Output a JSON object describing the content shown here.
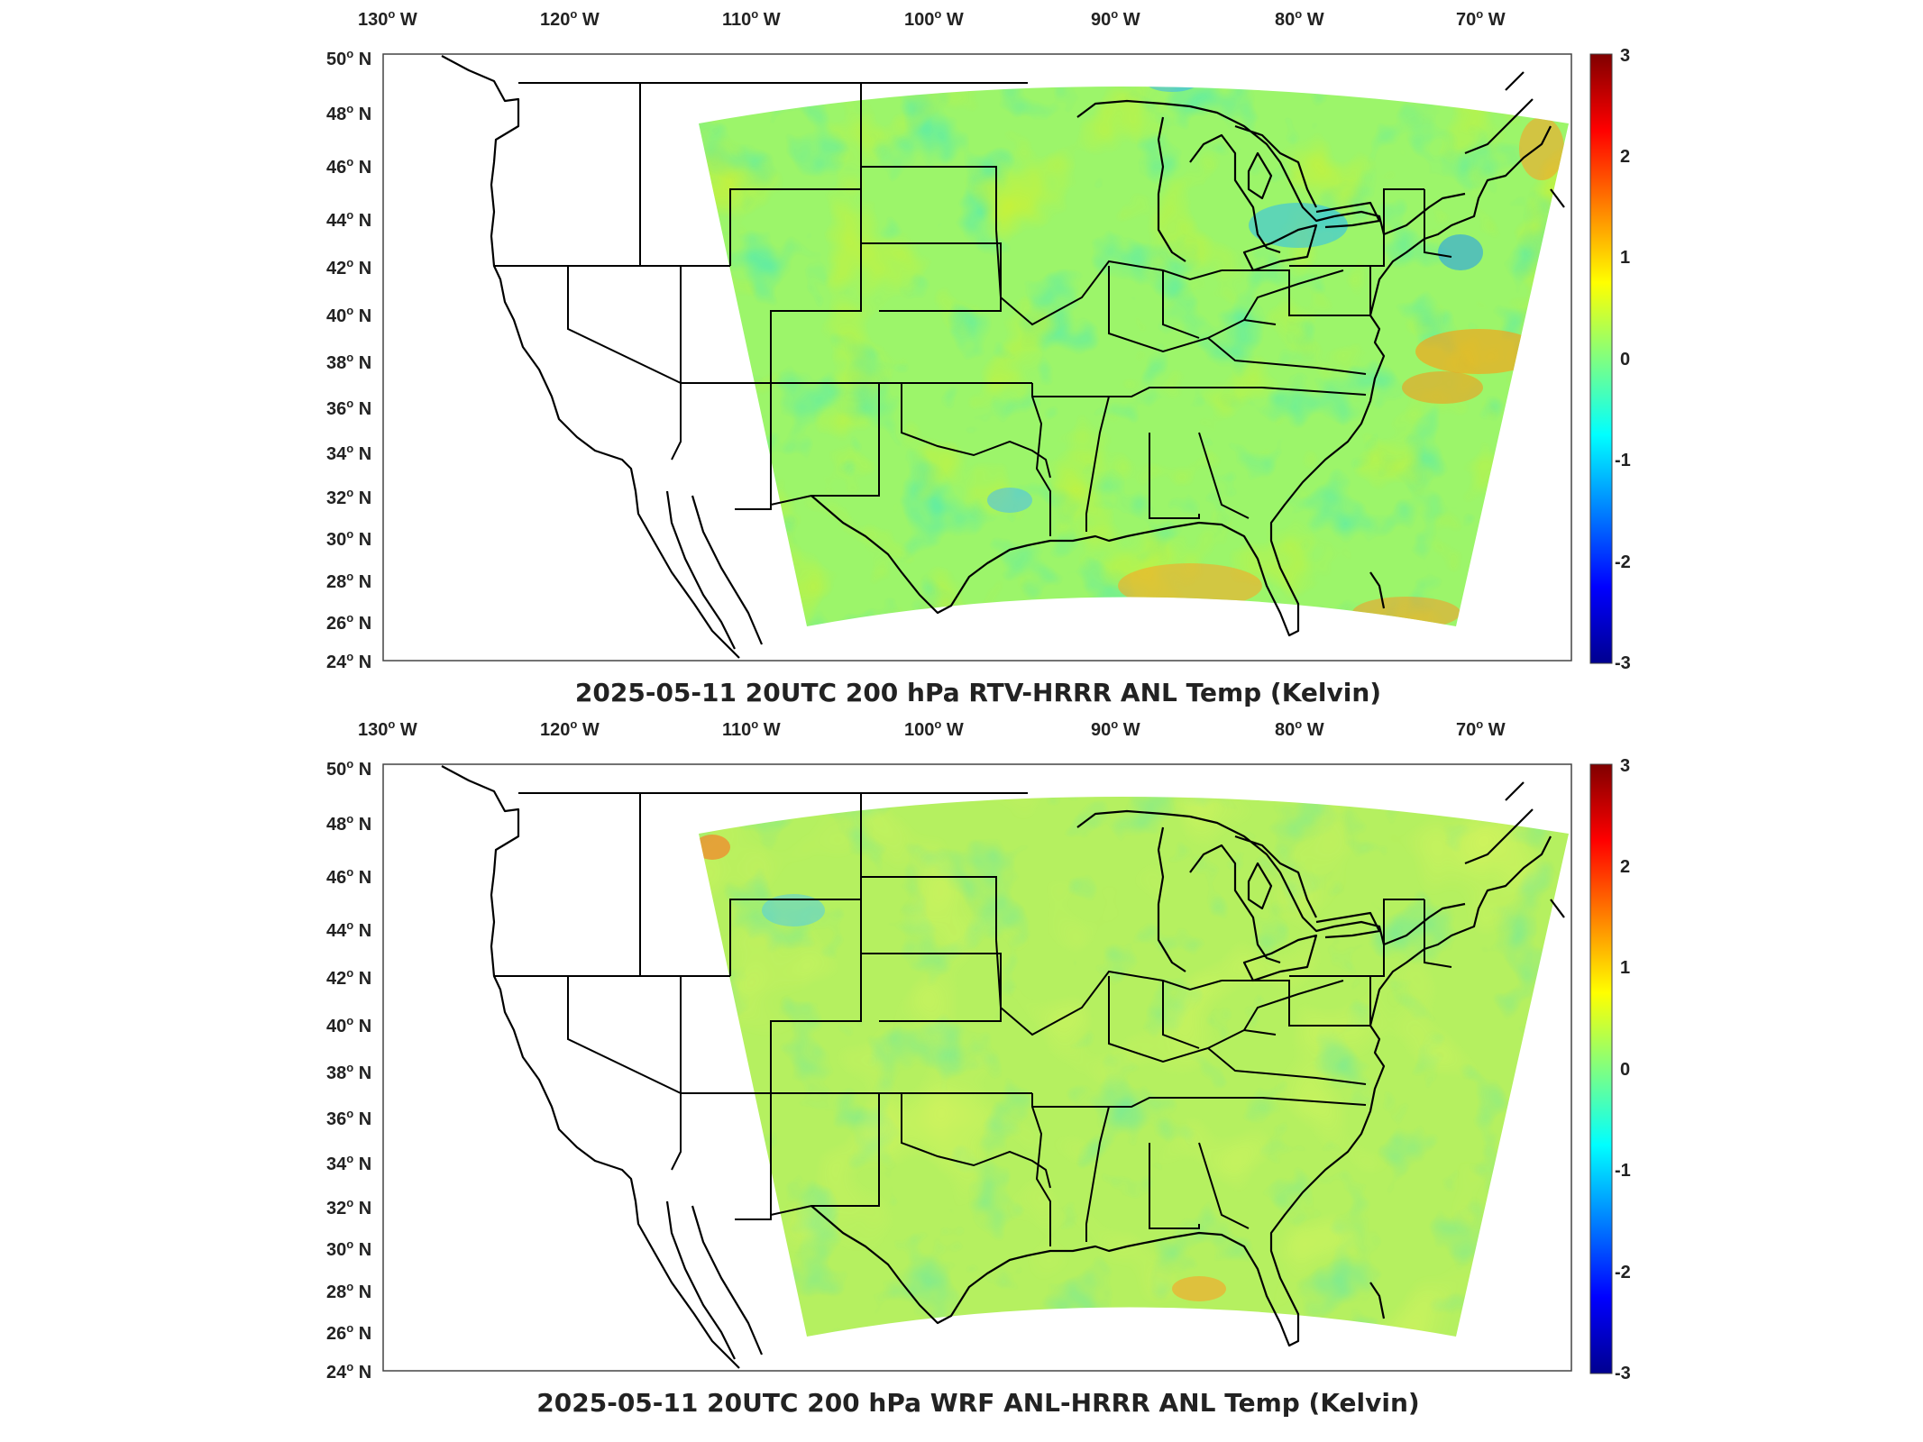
{
  "colormap": [
    "#00008f",
    "#0000ff",
    "#0080ff",
    "#00ffff",
    "#80ff80",
    "#ffff00",
    "#ff8000",
    "#ff0000",
    "#800000"
  ],
  "lon_labels": [
    {
      "value": "130",
      "hemi": "W"
    },
    {
      "value": "120",
      "hemi": "W"
    },
    {
      "value": "110",
      "hemi": "W"
    },
    {
      "value": "100",
      "hemi": "W"
    },
    {
      "value": "90",
      "hemi": "W"
    },
    {
      "value": "80",
      "hemi": "W"
    },
    {
      "value": "70",
      "hemi": "W"
    }
  ],
  "lat_labels": [
    {
      "value": "50",
      "hemi": "N"
    },
    {
      "value": "48",
      "hemi": "N"
    },
    {
      "value": "46",
      "hemi": "N"
    },
    {
      "value": "44",
      "hemi": "N"
    },
    {
      "value": "42",
      "hemi": "N"
    },
    {
      "value": "40",
      "hemi": "N"
    },
    {
      "value": "38",
      "hemi": "N"
    },
    {
      "value": "36",
      "hemi": "N"
    },
    {
      "value": "34",
      "hemi": "N"
    },
    {
      "value": "32",
      "hemi": "N"
    },
    {
      "value": "30",
      "hemi": "N"
    },
    {
      "value": "28",
      "hemi": "N"
    },
    {
      "value": "26",
      "hemi": "N"
    },
    {
      "value": "24",
      "hemi": "N"
    }
  ],
  "panels": [
    {
      "title": "2025-05-11 20UTC 200 hPa RTV-HRRR ANL Temp (Kelvin)",
      "colorbar": {
        "ticks": [
          "3",
          "2",
          "1",
          "0",
          "-1",
          "-2",
          "-3"
        ],
        "range": [
          -3,
          3
        ]
      }
    },
    {
      "title": "2025-05-11 20UTC 200 hPa WRF ANL-HRRR ANL Temp (Kelvin)",
      "colorbar": {
        "ticks": [
          "3",
          "2",
          "1",
          "0",
          "-1",
          "-2",
          "-3"
        ],
        "range": [
          -3,
          3
        ]
      }
    }
  ]
}
